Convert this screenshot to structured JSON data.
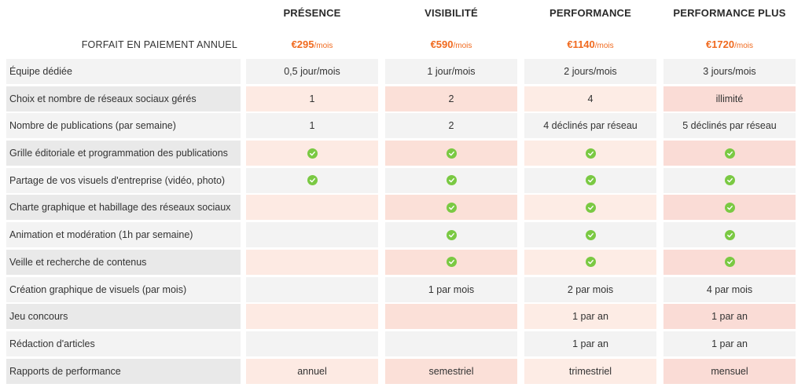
{
  "plans": [
    {
      "name": "PRÉSENCE",
      "price": "€295",
      "unit": "/mois"
    },
    {
      "name": "VISIBILITÉ",
      "price": "€590",
      "unit": "/mois"
    },
    {
      "name": "PERFORMANCE",
      "price": "€1140",
      "unit": "/mois"
    },
    {
      "name": "PERFORMANCE PLUS",
      "price": "€1720",
      "unit": "/mois"
    }
  ],
  "price_label": "FORFAIT EN PAIEMENT ANNUEL",
  "colors": {
    "accent": "#f06a1f",
    "check": "#7ac943"
  },
  "icons": {
    "included": "check-circle-icon"
  },
  "rows": [
    {
      "label": "Équipe dédiée",
      "values": [
        "0,5 jour/mois",
        "1 jour/mois",
        "2 jours/mois",
        "3 jours/mois"
      ]
    },
    {
      "label": "Choix et nombre de réseaux sociaux gérés",
      "values": [
        "1",
        "2",
        "4",
        "illimité"
      ]
    },
    {
      "label": "Nombre de publications (par semaine)",
      "values": [
        "1",
        "2",
        "4 déclinés par réseau",
        "5 déclinés par réseau"
      ]
    },
    {
      "label": "Grille éditoriale et programmation des publications",
      "values": [
        "✓",
        "✓",
        "✓",
        "✓"
      ]
    },
    {
      "label": "Partage de vos visuels d'entreprise (vidéo, photo)",
      "values": [
        "✓",
        "✓",
        "✓",
        "✓"
      ]
    },
    {
      "label": "Charte graphique et habillage des réseaux sociaux",
      "values": [
        "",
        "✓",
        "✓",
        "✓"
      ]
    },
    {
      "label": "Animation et modération (1h par semaine)",
      "values": [
        "",
        "✓",
        "✓",
        "✓"
      ]
    },
    {
      "label": "Veille et recherche de contenus",
      "values": [
        "",
        "✓",
        "✓",
        "✓"
      ]
    },
    {
      "label": "Création graphique de visuels (par mois)",
      "values": [
        "",
        "1 par mois",
        "2 par mois",
        "4 par mois"
      ]
    },
    {
      "label": "Jeu concours",
      "values": [
        "",
        "",
        "1 par an",
        "1 par an"
      ]
    },
    {
      "label": "Rédaction d'articles",
      "values": [
        "",
        "",
        "1 par an",
        "1 par an"
      ]
    },
    {
      "label": "Rapports de performance",
      "values": [
        "annuel",
        "semestriel",
        "trimestriel",
        "mensuel"
      ]
    }
  ]
}
